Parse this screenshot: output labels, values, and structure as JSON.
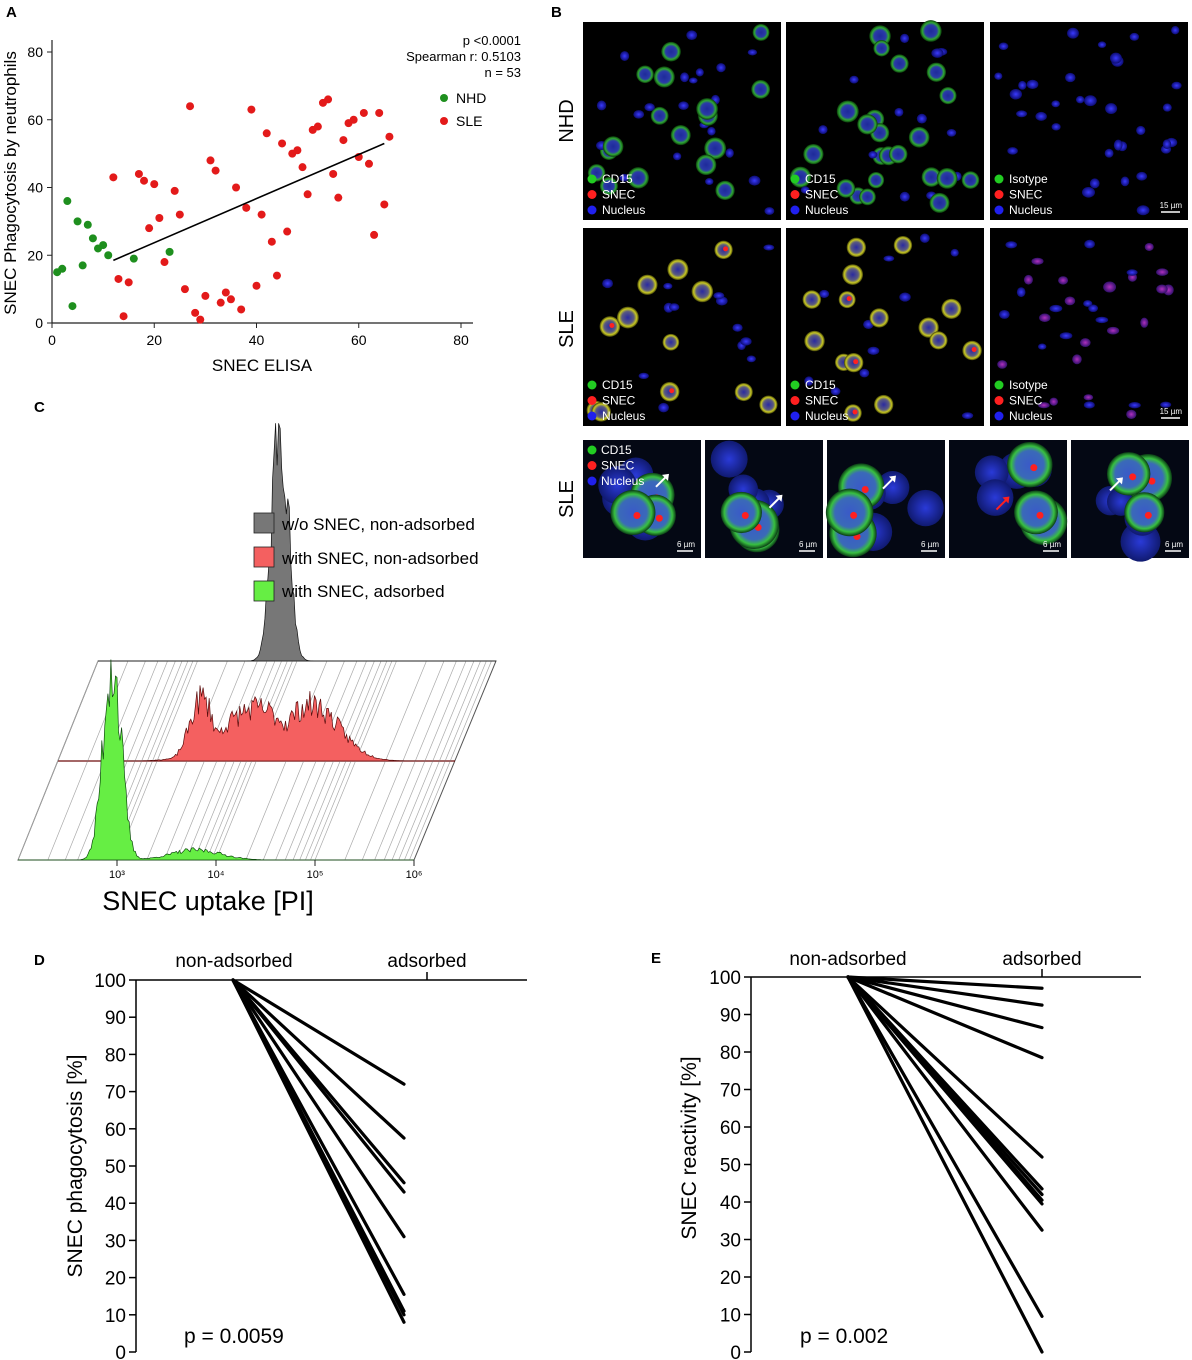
{
  "chart_data": [
    {
      "panel": "A",
      "type": "scatter",
      "xlabel": "SNEC ELISA",
      "ylabel": "SNEC Phagocytosis by neutrophils",
      "xlim": [
        0,
        80
      ],
      "ylim": [
        0,
        85
      ],
      "xticks": [
        "0",
        "20",
        "40",
        "60",
        "80"
      ],
      "yticks": [
        "0",
        "20",
        "40",
        "60",
        "80"
      ],
      "stats": [
        "p <0.0001",
        "Spearman r: 0.5103",
        "n = 53"
      ],
      "colors": {
        "NHD": "#1e8f1e",
        "SLE": "#e31a1a",
        "fit": "#000000"
      },
      "series": [
        {
          "name": "NHD",
          "points": [
            [
              1,
              15
            ],
            [
              2,
              16
            ],
            [
              3,
              36
            ],
            [
              4,
              5
            ],
            [
              5,
              30
            ],
            [
              6,
              17
            ],
            [
              7,
              29
            ],
            [
              8,
              25
            ],
            [
              9,
              22
            ],
            [
              10,
              23
            ],
            [
              11,
              20
            ],
            [
              16,
              19
            ],
            [
              23,
              21
            ]
          ]
        },
        {
          "name": "SLE",
          "points": [
            [
              12,
              43
            ],
            [
              13,
              13
            ],
            [
              14,
              2
            ],
            [
              15,
              12
            ],
            [
              17,
              44
            ],
            [
              18,
              42
            ],
            [
              19,
              28
            ],
            [
              20,
              41
            ],
            [
              21,
              31
            ],
            [
              22,
              18
            ],
            [
              24,
              39
            ],
            [
              25,
              32
            ],
            [
              26,
              10
            ],
            [
              27,
              64
            ],
            [
              28,
              3
            ],
            [
              29,
              1
            ],
            [
              30,
              8
            ],
            [
              31,
              48
            ],
            [
              32,
              45
            ],
            [
              33,
              6
            ],
            [
              34,
              9
            ],
            [
              35,
              7
            ],
            [
              36,
              40
            ],
            [
              37,
              4
            ],
            [
              38,
              34
            ],
            [
              39,
              63
            ],
            [
              40,
              11
            ],
            [
              41,
              32
            ],
            [
              42,
              56
            ],
            [
              43,
              24
            ],
            [
              44,
              14
            ],
            [
              45,
              53
            ],
            [
              46,
              27
            ],
            [
              47,
              50
            ],
            [
              48,
              51
            ],
            [
              49,
              46
            ],
            [
              50,
              38
            ],
            [
              51,
              57
            ],
            [
              52,
              58
            ],
            [
              53,
              65
            ],
            [
              54,
              66
            ],
            [
              55,
              44
            ],
            [
              56,
              37
            ],
            [
              57,
              54
            ],
            [
              58,
              59
            ],
            [
              59,
              60
            ],
            [
              60,
              49
            ],
            [
              61,
              62
            ],
            [
              62,
              47
            ],
            [
              63,
              26
            ],
            [
              64,
              62
            ],
            [
              65,
              35
            ],
            [
              66,
              55
            ]
          ]
        }
      ],
      "fit_line": [
        [
          12,
          18.5
        ],
        [
          65,
          53.0
        ]
      ]
    },
    {
      "panel": "C",
      "type": "area",
      "xlabel": "SNEC uptake [PI]",
      "xscale": "log",
      "xlim": [
        100,
        1000000
      ],
      "xtick_labels": [
        "10³",
        "10⁴",
        "10⁵",
        "10⁶"
      ],
      "series": [
        {
          "name": "w/o SNEC, non-adsorbed",
          "color": "#777777",
          "log_peak": 3.83,
          "log_width": 0.08
        },
        {
          "name": "with SNEC, non-adsorbed",
          "color": "#f46060",
          "log_peaks": [
            3.45,
            4.55
          ],
          "shoulder": 0.6
        },
        {
          "name": "with SNEC, adsorbed",
          "color": "#66ee44",
          "log_peak": 2.95,
          "log_width": 0.09
        }
      ]
    },
    {
      "panel": "D",
      "type": "line",
      "ylabel": "SNEC phagocytosis [%]",
      "categories": [
        "non-adsorbed",
        "adsorbed"
      ],
      "ylim": [
        0,
        100
      ],
      "yticks": [
        "0",
        "10",
        "20",
        "30",
        "40",
        "50",
        "60",
        "70",
        "80",
        "90",
        "100"
      ],
      "p_value": "p = 0.0059",
      "pairs_end_values": [
        72,
        57.5,
        45.5,
        43,
        31,
        15.5,
        11,
        10,
        8
      ]
    },
    {
      "panel": "E",
      "type": "line",
      "ylabel": "SNEC reactivity  [%]",
      "categories": [
        "non-adsorbed",
        "adsorbed"
      ],
      "ylim": [
        0,
        100
      ],
      "yticks": [
        "0",
        "10",
        "20",
        "30",
        "40",
        "50",
        "60",
        "70",
        "80",
        "90",
        "100"
      ],
      "p_value": "p = 0.002",
      "pairs_end_values": [
        97,
        92.5,
        86.5,
        78.5,
        52,
        43.5,
        42,
        40.5,
        39.5,
        32.5,
        9.5,
        0
      ]
    }
  ],
  "panelB": {
    "label": "B",
    "rows": [
      {
        "label": "NHD",
        "legends": [
          [
            "CD15",
            "SNEC",
            "Nucleus"
          ],
          [
            "CD15",
            "SNEC",
            "Nucleus"
          ],
          [
            "Isotype",
            "SNEC",
            "Nucleus"
          ]
        ],
        "scale": "15 µm"
      },
      {
        "label": "SLE",
        "legends": [
          [
            "CD15",
            "SNEC",
            "Nucleus"
          ],
          [
            "CD15",
            "SNEC",
            "Nucleus"
          ],
          [
            "Isotype",
            "SNEC",
            "Nucleus"
          ]
        ],
        "scale": "15 µm"
      },
      {
        "label": "SLE",
        "legends": [
          [
            "CD15",
            "SNEC",
            "Nucleus"
          ]
        ],
        "scale": "6 µm",
        "count": 5
      }
    ],
    "colors": {
      "green": "#22cc22",
      "red": "#ff2020",
      "blue": "#2020ee"
    }
  },
  "labels": {
    "A": "A",
    "C": "C",
    "D": "D",
    "E": "E"
  }
}
